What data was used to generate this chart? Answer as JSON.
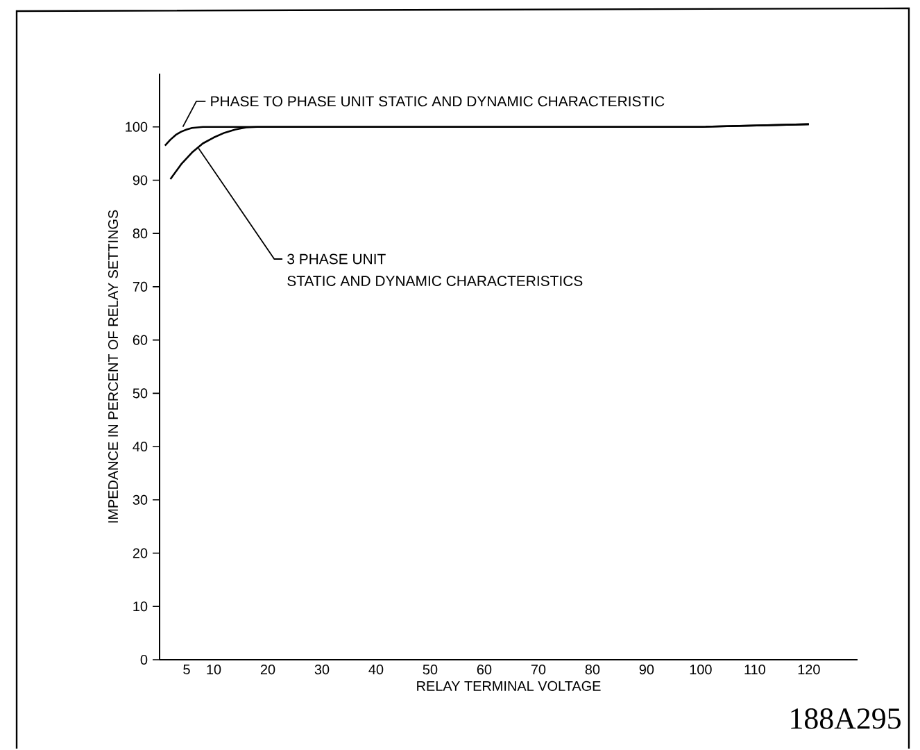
{
  "chart_data": {
    "type": "line",
    "xlabel": "RELAY TERMINAL VOLTAGE",
    "ylabel": "IMPEDANCE IN PERCENT OF RELAY SETTINGS",
    "xlim": [
      0,
      129
    ],
    "ylim": [
      0,
      110
    ],
    "xticks": [
      5,
      10,
      20,
      30,
      40,
      50,
      60,
      70,
      80,
      90,
      100,
      110,
      120
    ],
    "yticks": [
      0,
      10,
      20,
      30,
      40,
      50,
      60,
      70,
      80,
      90,
      100
    ],
    "marker": "none",
    "line_style": "solid",
    "series": [
      {
        "color": "#000000",
        "x": [
          1,
          2,
          3,
          4,
          5,
          6,
          8,
          10,
          20,
          40,
          60,
          80,
          100,
          120
        ],
        "values": [
          96.5,
          97.6,
          98.5,
          99.1,
          99.5,
          99.8,
          100,
          100,
          100,
          100,
          100,
          100,
          100,
          100.5
        ]
      },
      {
        "color": "#000000",
        "x": [
          2,
          4,
          6,
          8,
          10,
          12,
          14,
          16,
          18,
          20,
          40,
          60,
          80,
          100,
          120
        ],
        "values": [
          90.2,
          93,
          95.2,
          96.9,
          98,
          98.9,
          99.5,
          99.9,
          100,
          100,
          100,
          100,
          100,
          100,
          100.5
        ]
      }
    ],
    "annotations": [
      {
        "text": "PHASE TO PHASE UNIT STATIC AND DYNAMIC CHARACTERISTIC",
        "x": 4.3,
        "y": 100
      },
      {
        "text": "3 PHASE UNIT",
        "x": 7.2,
        "y": 96
      },
      "STATIC AND DYNAMIC CHARACTERISTICS",
      "188A295"
    ]
  }
}
